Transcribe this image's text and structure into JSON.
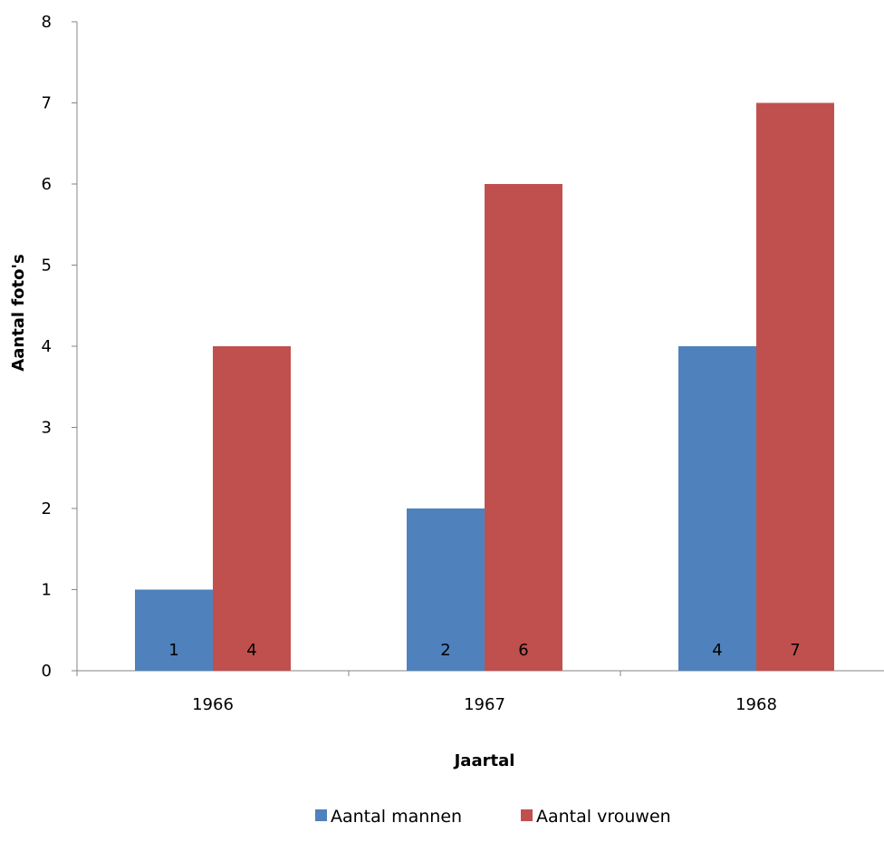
{
  "chart_data": {
    "type": "bar",
    "title": "",
    "xlabel": "Jaartal",
    "ylabel": "Aantal foto's",
    "categories": [
      "1966",
      "1967",
      "1968"
    ],
    "series": [
      {
        "name": "Aantal mannen",
        "values": [
          1,
          2,
          4
        ],
        "color": "#4F81BD"
      },
      {
        "name": "Aantal vrouwen",
        "values": [
          4,
          6,
          7
        ],
        "color": "#C0504D"
      }
    ],
    "ylim": [
      0,
      8
    ],
    "yticks": [
      0,
      1,
      2,
      3,
      4,
      5,
      6,
      7,
      8
    ],
    "grid": false,
    "data_labels": true,
    "legend_position": "bottom"
  }
}
